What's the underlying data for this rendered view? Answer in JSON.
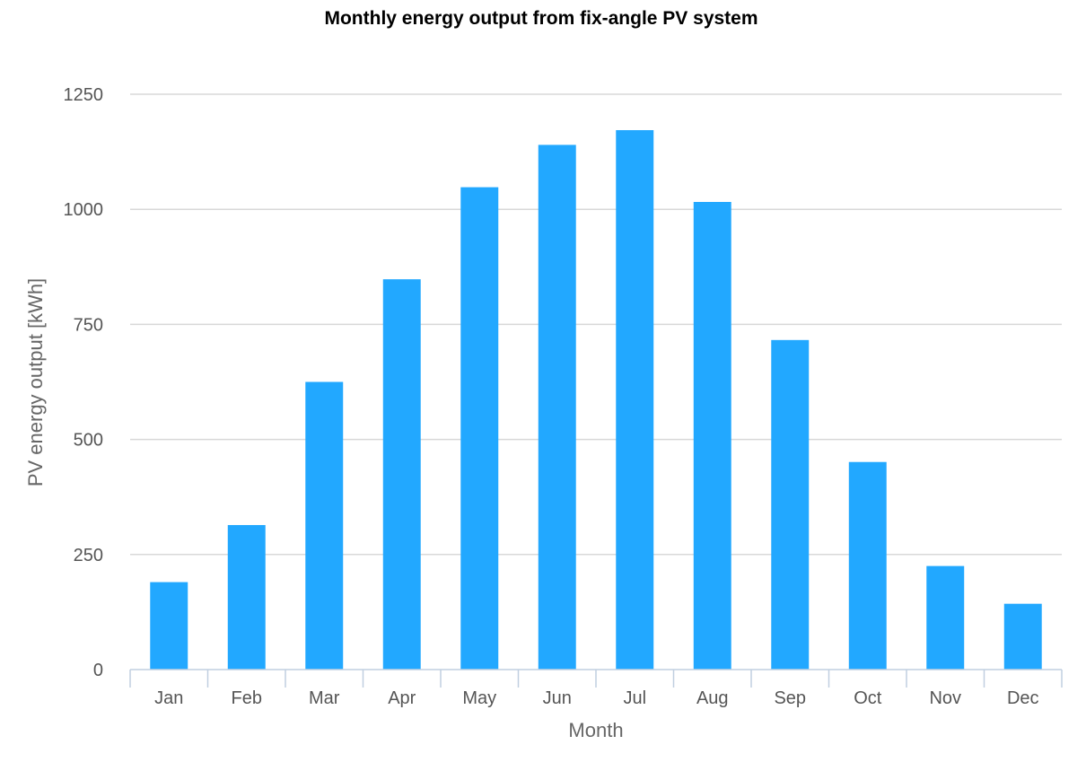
{
  "chart_data": {
    "type": "bar",
    "title": "Monthly energy output from fix-angle PV system",
    "xlabel": "Month",
    "ylabel": "PV energy output [kWh]",
    "categories": [
      "Jan",
      "Feb",
      "Mar",
      "Apr",
      "May",
      "Jun",
      "Jul",
      "Aug",
      "Sep",
      "Oct",
      "Nov",
      "Dec"
    ],
    "values": [
      190,
      314,
      625,
      848,
      1048,
      1140,
      1172,
      1016,
      716,
      451,
      225,
      143
    ],
    "ylim": [
      0,
      1250
    ],
    "yticks": [
      0,
      250,
      500,
      750,
      1000,
      1250
    ],
    "grid": true,
    "legend": "none",
    "bar_color": "#22a8ff"
  }
}
